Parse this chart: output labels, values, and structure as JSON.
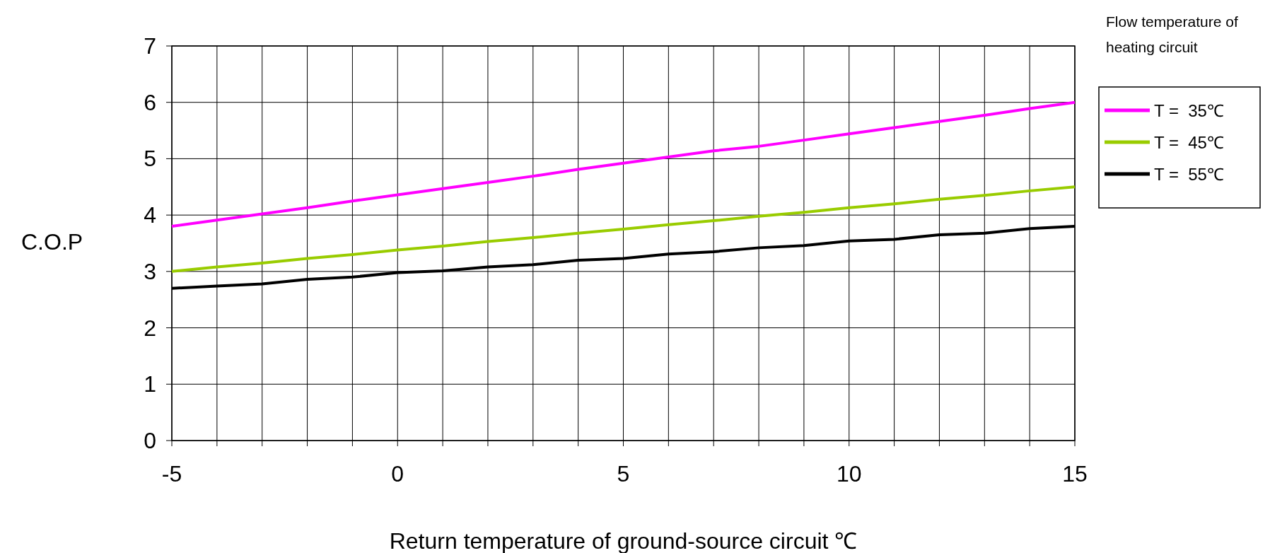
{
  "chart_data": {
    "type": "line",
    "xlabel": "Return temperature of ground-source circuit  ℃",
    "ylabel": "C.O.P",
    "legend_title": "Flow temperature of heating circuit",
    "x": [
      -5,
      -4,
      -3,
      -2,
      -1,
      0,
      1,
      2,
      3,
      4,
      5,
      6,
      7,
      8,
      9,
      10,
      11,
      12,
      13,
      14,
      15
    ],
    "series": [
      {
        "name": "T =  35℃",
        "color": "#ff00ff",
        "values": [
          3.8,
          3.91,
          4.02,
          4.13,
          4.25,
          4.36,
          4.47,
          4.58,
          4.69,
          4.81,
          4.92,
          5.03,
          5.14,
          5.22,
          5.33,
          5.44,
          5.55,
          5.66,
          5.77,
          5.89,
          6.0
        ]
      },
      {
        "name": "T =  45℃",
        "color": "#99cc00",
        "values": [
          3.0,
          3.08,
          3.15,
          3.23,
          3.3,
          3.38,
          3.45,
          3.53,
          3.6,
          3.68,
          3.75,
          3.83,
          3.9,
          3.98,
          4.05,
          4.13,
          4.2,
          4.28,
          4.35,
          4.43,
          4.5
        ]
      },
      {
        "name": "T =  55℃",
        "color": "#000000",
        "values": [
          2.7,
          2.74,
          2.78,
          2.86,
          2.9,
          2.98,
          3.01,
          3.08,
          3.12,
          3.2,
          3.23,
          3.31,
          3.35,
          3.42,
          3.46,
          3.54,
          3.57,
          3.65,
          3.68,
          3.76,
          3.8
        ]
      }
    ],
    "xlim": [
      -5,
      15
    ],
    "xticks": [
      -5,
      {
        "value": -4,
        "label": null
      },
      {
        "value": -3,
        "label": null
      },
      {
        "value": -2,
        "label": null
      },
      {
        "value": -1,
        "label": null
      },
      0,
      {
        "value": 1,
        "label": null
      },
      {
        "value": 2,
        "label": null
      },
      {
        "value": 3,
        "label": null
      },
      {
        "value": 4,
        "label": null
      },
      5,
      {
        "value": 6,
        "label": null
      },
      {
        "value": 7,
        "label": null
      },
      {
        "value": 8,
        "label": null
      },
      {
        "value": 9,
        "label": null
      },
      10,
      {
        "value": 11,
        "label": null
      },
      {
        "value": 12,
        "label": null
      },
      {
        "value": 13,
        "label": null
      },
      {
        "value": 14,
        "label": null
      },
      15
    ],
    "ylim": [
      0,
      7
    ],
    "yticks": [
      0,
      1,
      2,
      3,
      4,
      5,
      6,
      7
    ],
    "grid": true,
    "legend": "right",
    "marker": "none",
    "line_style": "solid"
  }
}
